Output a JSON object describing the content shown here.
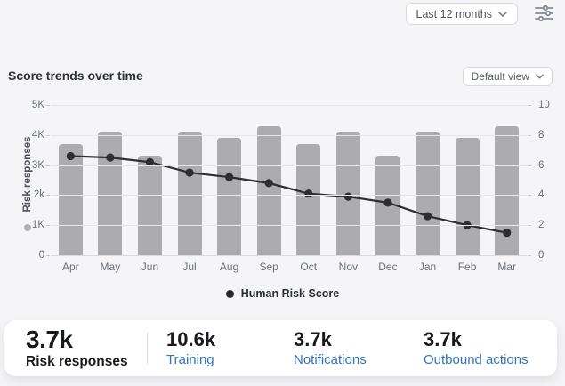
{
  "toolbar": {
    "period_dropdown": {
      "label": "Last 12 months",
      "icon": "chevron-down-icon"
    },
    "filter": {
      "icon": "sliders-icon"
    }
  },
  "section": {
    "title": "Score trends over time",
    "view_dropdown": {
      "label": "Default view",
      "icon": "chevron-down-icon"
    }
  },
  "chart_data": {
    "type": "bar",
    "subtype": "bar+line combo",
    "categories": [
      "Apr",
      "May",
      "Jun",
      "Jul",
      "Aug",
      "Sep",
      "Oct",
      "Nov",
      "Dec",
      "Jan",
      "Feb",
      "Mar"
    ],
    "series": [
      {
        "name": "Risk responses",
        "type": "bar",
        "axis": "left",
        "color": "#acacae",
        "values": [
          3700,
          4100,
          3300,
          4100,
          3900,
          4300,
          3700,
          4100,
          3300,
          4100,
          3900,
          4300
        ]
      },
      {
        "name": "Human Risk Score",
        "type": "line",
        "axis": "right",
        "color": "#2e2e30",
        "marker": "circle",
        "values": [
          6.6,
          6.5,
          6.2,
          5.5,
          5.2,
          4.8,
          4.1,
          3.9,
          3.5,
          2.6,
          2.0,
          1.5
        ]
      }
    ],
    "left_axis": {
      "label": "Risk responses",
      "ticks": [
        "5K",
        "4K",
        "3K",
        "2k",
        "1K",
        "0"
      ],
      "min": 0,
      "max": 5000,
      "marker_color": "#b1b1b4"
    },
    "right_axis": {
      "ticks": [
        "10",
        "8",
        "6",
        "4",
        "2",
        "0"
      ],
      "min": 0,
      "max": 10
    },
    "legend": {
      "position": "bottom-center",
      "items": [
        {
          "label": "Human Risk Score",
          "marker": "circle",
          "marker_color": "#29292b"
        }
      ]
    },
    "grid": true
  },
  "stats": [
    {
      "value": "3.7k",
      "label": "Risk responses",
      "label_color": "#17191c",
      "selected": true
    },
    {
      "value": "10.6k",
      "label": "Training",
      "label_color": "#3273be"
    },
    {
      "value": "3.7k",
      "label": "Notifications",
      "label_color": "#3273be"
    },
    {
      "value": "3.7k",
      "label": "Outbound actions",
      "label_color": "#3273be"
    }
  ],
  "colors": {
    "page_bg": "#f5f5f7",
    "bar": "#acacae",
    "line": "#2e2e30",
    "gridline": "#e6e7eb",
    "accent_blue": "#3273be",
    "card_bg": "#ffffff"
  }
}
